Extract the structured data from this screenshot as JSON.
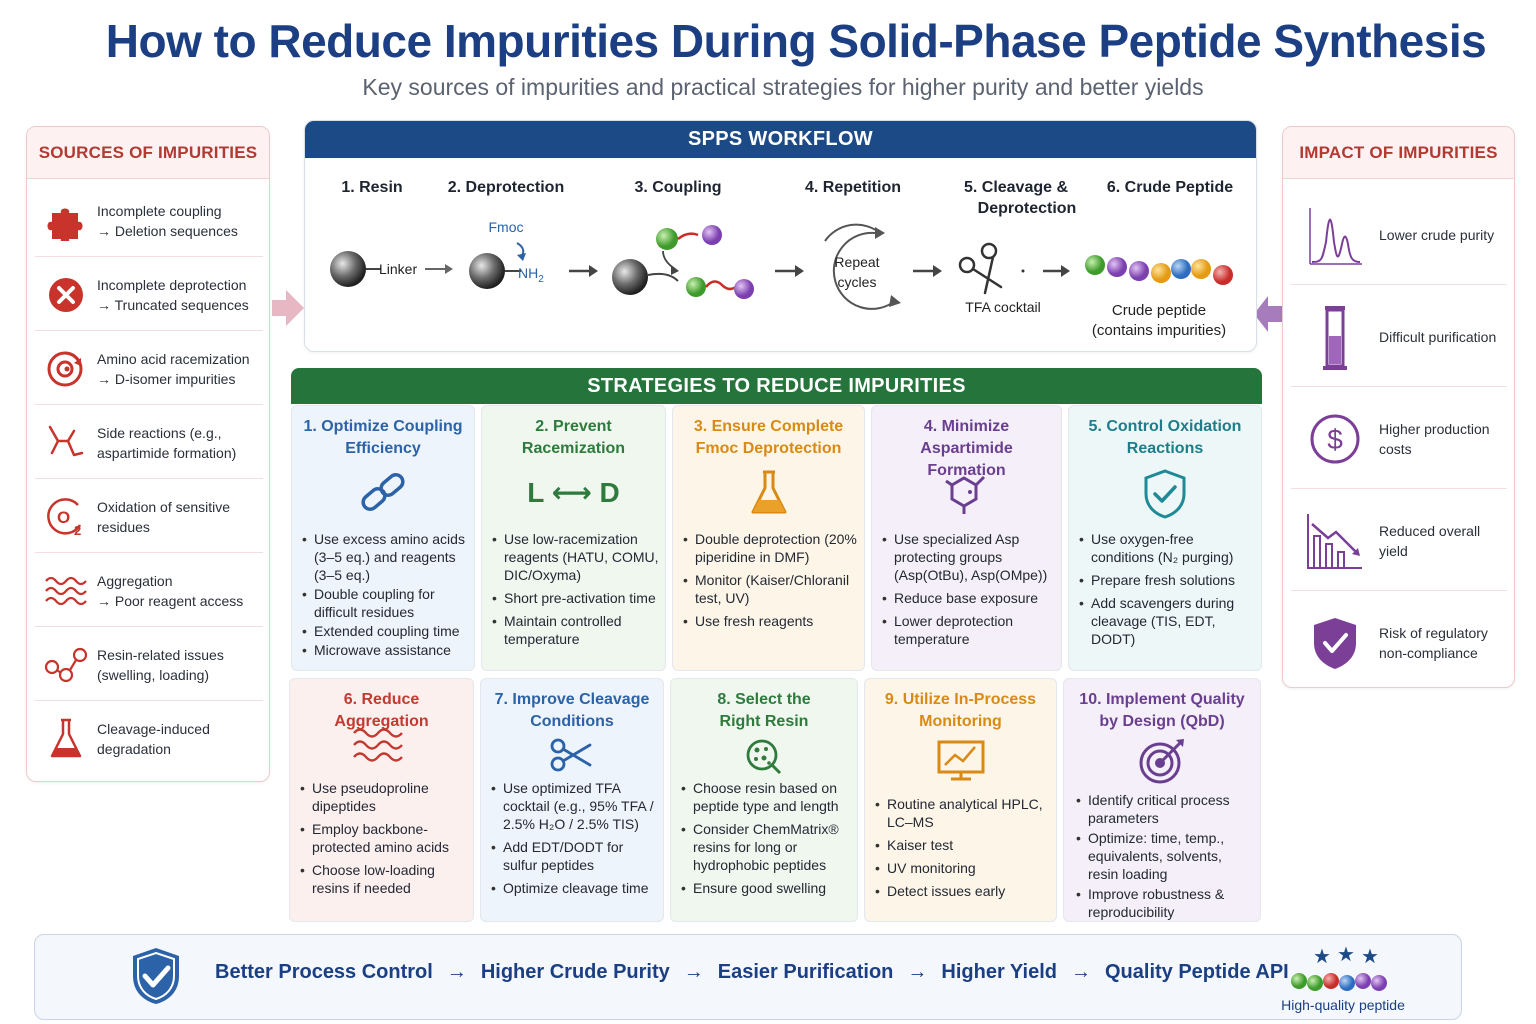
{
  "title": "How to Reduce Impurities During Solid-Phase Peptide Synthesis",
  "subtitle": "Key sources of impurities and practical strategies for higher purity and better yields",
  "sources": {
    "heading": "SOURCES OF IMPURITIES",
    "items": [
      {
        "line1": "Incomplete coupling",
        "line2": "→ Deletion sequences",
        "icon": "puzzle-icon"
      },
      {
        "line1": "Incomplete deprotection",
        "line2": "→ Truncated sequences",
        "icon": "x-circle-icon"
      },
      {
        "line1": "Amino acid racemization",
        "line2": "→ D-isomer impurities",
        "icon": "racemization-icon"
      },
      {
        "line1": "Side reactions (e.g.,",
        "line2": "aspartimide formation)",
        "icon": "branch-molecule-icon"
      },
      {
        "line1": "Oxidation of sensitive",
        "line2": "residues",
        "icon": "oxygen-icon"
      },
      {
        "line1": "Aggregation",
        "line2": "→ Poor reagent access",
        "icon": "wave-icon"
      },
      {
        "line1": "Resin-related issues",
        "line2": "(swelling, loading)",
        "icon": "resin-beads-icon"
      },
      {
        "line1": "Cleavage-induced",
        "line2": "degradation",
        "icon": "flask-icon"
      }
    ]
  },
  "workflow": {
    "heading": "SPPS WORKFLOW",
    "steps": [
      {
        "label": "1. Resin"
      },
      {
        "label": "2. Deprotection"
      },
      {
        "label": "3. Coupling"
      },
      {
        "label": "4. Repetition"
      },
      {
        "label_line1": "5. Cleavage &",
        "label_line2": "Deprotection"
      },
      {
        "label": "6. Crude Peptide"
      }
    ],
    "linker": "Linker",
    "fmoc": "Fmoc",
    "nh2": "NH",
    "nh2_sub": "2",
    "repeat_line1": "Repeat",
    "repeat_line2": "cycles",
    "tfa": "TFA cocktail",
    "crude_line1": "Crude peptide",
    "crude_line2": "(contains impurities)"
  },
  "impact": {
    "heading": "IMPACT OF IMPURITIES",
    "items": [
      {
        "line1": "Lower crude purity",
        "line2": "",
        "icon": "chromatogram-icon"
      },
      {
        "line1": "Difficult purification",
        "line2": "",
        "icon": "column-icon"
      },
      {
        "line1": "Higher production",
        "line2": "costs",
        "icon": "dollar-icon"
      },
      {
        "line1": "Reduced overall",
        "line2": "yield",
        "icon": "declining-chart-icon"
      },
      {
        "line1": "Risk of regulatory",
        "line2": "non-compliance",
        "icon": "shield-check-icon"
      }
    ]
  },
  "strategies": {
    "heading": "STRATEGIES TO REDUCE IMPURITIES",
    "cards": [
      {
        "title1": "1. Optimize Coupling",
        "title2": "Efficiency",
        "color": "#2b62a8",
        "bullets": [
          "Use excess amino acids (3–5 eq.) and reagents (3–5 eq.)",
          "Double coupling for difficult residues",
          "Extended coupling time",
          "Microwave assistance"
        ]
      },
      {
        "title1": "2. Prevent",
        "title2": "Racemization",
        "color": "#2f7a3d",
        "icon_text": "L ⟷ D",
        "bullets": [
          "Use low-racemization reagents (HATU, COMU, DIC/Oxyma)",
          "Short pre-activation time",
          "Maintain controlled temperature"
        ]
      },
      {
        "title1": "3. Ensure Complete",
        "title2": "Fmoc Deprotection",
        "color": "#d98a14",
        "bullets": [
          "Double deprotection (20% piperidine in DMF)",
          "Monitor (Kaiser/Chloranil test, UV)",
          "Use fresh reagents"
        ]
      },
      {
        "title1": "4. Minimize",
        "title2": "Aspartimide Formation",
        "color": "#6a3f8f",
        "bullets": [
          "Use specialized Asp protecting groups (Asp(OtBu), Asp(OMpe))",
          "Reduce base exposure",
          "Lower deprotection temperature"
        ]
      },
      {
        "title1": "5. Control Oxidation",
        "title2": "Reactions",
        "color": "#1f7d8a",
        "bullets": [
          "Use oxygen-free conditions (N₂ purging)",
          "Prepare fresh solutions",
          "Add scavengers during cleavage (TIS, EDT, DODT)"
        ]
      },
      {
        "title1": "6. Reduce Aggregation",
        "title2": "",
        "color": "#c23b30",
        "bullets": [
          "Use pseudoproline dipeptides",
          "Employ backbone-protected amino acids",
          "Choose low-loading resins if needed"
        ]
      },
      {
        "title1": "7. Improve Cleavage",
        "title2": "Conditions",
        "color": "#2b62a8",
        "bullets": [
          "Use optimized TFA cocktail (e.g., 95% TFA / 2.5% H₂O / 2.5% TIS)",
          "Add EDT/DODT for sulfur peptides",
          "Optimize cleavage time"
        ]
      },
      {
        "title1": "8. Select the",
        "title2": "Right Resin",
        "color": "#2f7a3d",
        "bullets": [
          "Choose resin based on peptide type and length",
          "Consider ChemMatrix® resins for long or hydrophobic peptides",
          "Ensure good swelling"
        ]
      },
      {
        "title1": "9. Utilize In-Process",
        "title2": "Monitoring",
        "color": "#d98a14",
        "bullets": [
          "Routine analytical HPLC, LC–MS",
          "Kaiser test",
          "UV monitoring",
          "Detect issues early"
        ]
      },
      {
        "title1": "10. Implement Quality",
        "title2": "by Design (QbD)",
        "color": "#6a3f8f",
        "bullets": [
          "Identify critical process parameters",
          "Optimize: time, temp., equivalents, solvents, resin loading",
          "Improve robustness & reproducibility"
        ]
      }
    ]
  },
  "banner": {
    "steps": [
      "Better Process Control",
      "Higher Crude Purity",
      "Easier Purification",
      "Higher Yield",
      "Quality Peptide API"
    ],
    "arrow": "→",
    "badge_label": "High-quality peptide"
  },
  "colors": {
    "navy": "#1b3f82",
    "green_bar": "#24743b",
    "blue_bar": "#1b4a86",
    "red": "#c23b30",
    "purple": "#6a3f8f"
  }
}
